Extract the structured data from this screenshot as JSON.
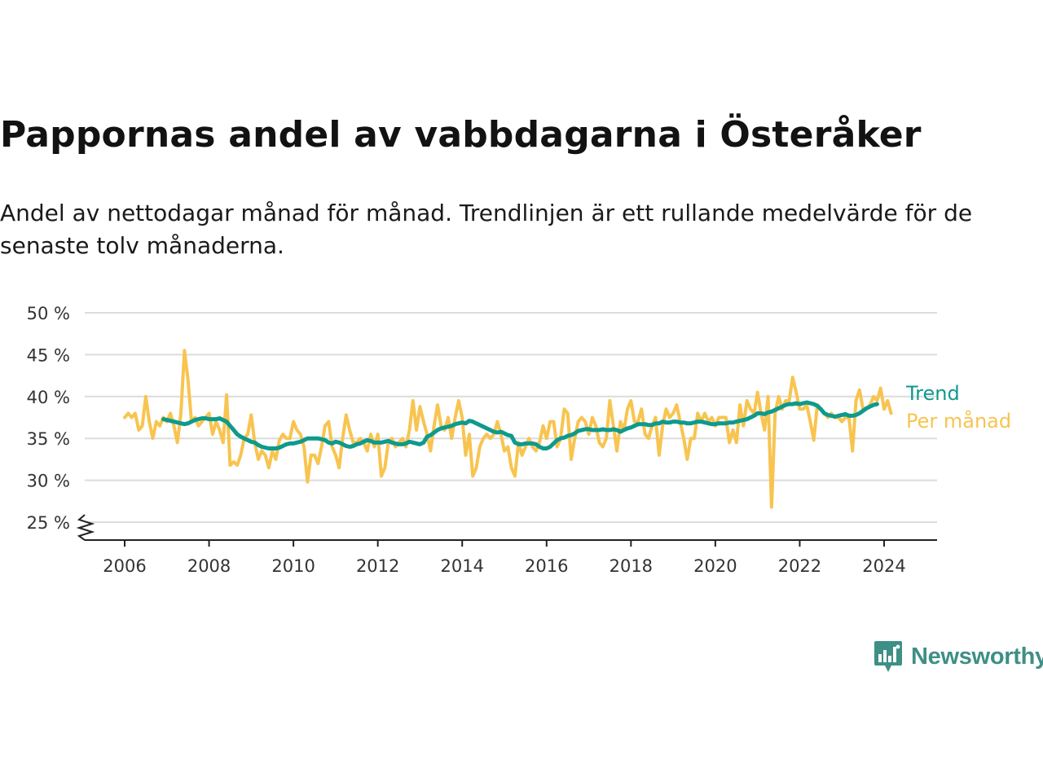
{
  "title": "Pappornas andel av vabbdagarna i Österåker",
  "subtitle": "Andel av nettodagar månad för månad. Trendlinjen är ett rullande medelvärde för de senaste tolv månaderna.",
  "brand": {
    "name": "Newsworthy",
    "color": "#3e8f86"
  },
  "colors": {
    "trend": "#0e9a8c",
    "monthly": "#f8c450",
    "grid": "#dcdcdc",
    "axis": "#222222"
  },
  "chart_data": {
    "type": "line",
    "title": "Pappornas andel av vabbdagarna i Österåker",
    "xlabel": "",
    "ylabel": "",
    "ylim": [
      25,
      50
    ],
    "y_axis_break": true,
    "y_ticks": [
      25,
      30,
      35,
      40,
      45,
      50
    ],
    "y_tick_labels": [
      "25 %",
      "30 %",
      "35 %",
      "40 %",
      "45 %",
      "50 %"
    ],
    "x_ticks": [
      "2006",
      "2008",
      "2010",
      "2012",
      "2014",
      "2016",
      "2018",
      "2020",
      "2022",
      "2024"
    ],
    "grid": true,
    "legend": "inline-right",
    "series": [
      {
        "name": "Per månad",
        "start": "2006-01",
        "frequency": "monthly",
        "values": [
          37.5,
          38.0,
          37.5,
          38.0,
          36.0,
          36.5,
          40.0,
          37.0,
          35.0,
          37.0,
          36.5,
          37.5,
          37.0,
          38.0,
          36.5,
          34.5,
          38.0,
          45.5,
          42.0,
          37.0,
          37.5,
          36.5,
          37.0,
          37.5,
          38.0,
          35.5,
          37.0,
          36.0,
          34.5,
          40.2,
          31.8,
          32.2,
          31.8,
          33.0,
          35.0,
          35.5,
          37.8,
          34.5,
          32.5,
          33.5,
          33.0,
          31.5,
          33.5,
          32.5,
          34.8,
          35.5,
          35.0,
          35.0,
          37.0,
          36.0,
          35.5,
          34.0,
          29.8,
          33.0,
          33.0,
          32.0,
          34.0,
          36.5,
          37.0,
          34.0,
          33.0,
          31.5,
          35.0,
          37.8,
          36.0,
          34.5,
          34.5,
          35.0,
          34.5,
          33.5,
          35.5,
          34.0,
          35.5,
          30.5,
          31.5,
          34.5,
          35.0,
          34.0,
          34.5,
          35.0,
          34.0,
          36.0,
          39.5,
          36.0,
          38.8,
          37.0,
          35.5,
          33.5,
          36.5,
          39.0,
          36.5,
          36.0,
          37.5,
          35.0,
          37.5,
          39.5,
          37.5,
          33.0,
          35.5,
          30.5,
          31.5,
          34.0,
          35.0,
          35.5,
          35.0,
          35.5,
          37.0,
          35.5,
          33.5,
          34.0,
          31.5,
          30.5,
          34.5,
          33.0,
          34.0,
          35.0,
          34.0,
          33.5,
          34.5,
          36.5,
          35.0,
          37.0,
          37.0,
          34.0,
          35.0,
          38.5,
          38.0,
          32.5,
          35.0,
          37.0,
          37.5,
          37.0,
          35.5,
          37.5,
          36.5,
          34.5,
          34.0,
          35.0,
          39.5,
          36.5,
          33.5,
          37.0,
          36.0,
          38.5,
          39.5,
          37.0,
          37.0,
          38.5,
          35.5,
          35.0,
          36.5,
          37.5,
          33.0,
          36.5,
          38.5,
          37.5,
          38.0,
          39.0,
          37.0,
          35.0,
          32.5,
          35.0,
          35.0,
          38.0,
          37.0,
          38.0,
          37.0,
          37.5,
          36.5,
          37.5,
          37.5,
          37.5,
          34.5,
          36.0,
          34.5,
          39.0,
          36.5,
          39.5,
          38.5,
          38.0,
          40.5,
          38.0,
          36.0,
          40.0,
          26.8,
          38.0,
          40.0,
          38.5,
          39.5,
          39.5,
          42.3,
          40.5,
          38.5,
          38.5,
          39.0,
          37.0,
          34.8,
          39.0,
          38.5,
          38.0,
          37.5,
          38.0,
          37.5,
          37.5,
          37.0,
          37.5,
          37.5,
          33.5,
          39.5,
          40.8,
          38.5,
          38.5,
          39.0,
          40.0,
          39.5,
          41.0,
          38.5,
          39.5,
          38.0
        ]
      },
      {
        "name": "Trend",
        "start": "2006-12",
        "frequency": "monthly",
        "values": [
          37.3,
          37.2,
          37.1,
          37.0,
          36.9,
          36.8,
          36.7,
          36.8,
          37.0,
          37.2,
          37.3,
          37.4,
          37.4,
          37.3,
          37.3,
          37.3,
          37.4,
          37.2,
          37.0,
          36.5,
          36.0,
          35.5,
          35.2,
          35.0,
          34.8,
          34.6,
          34.5,
          34.2,
          34.0,
          33.9,
          33.8,
          33.8,
          33.8,
          33.9,
          34.1,
          34.3,
          34.4,
          34.4,
          34.5,
          34.6,
          34.8,
          35.0,
          35.0,
          35.0,
          35.0,
          34.9,
          34.8,
          34.5,
          34.4,
          34.6,
          34.5,
          34.3,
          34.1,
          34.0,
          34.1,
          34.3,
          34.4,
          34.6,
          34.8,
          34.7,
          34.5,
          34.5,
          34.5,
          34.6,
          34.7,
          34.5,
          34.4,
          34.3,
          34.3,
          34.4,
          34.6,
          34.5,
          34.4,
          34.3,
          34.5,
          35.2,
          35.4,
          35.7,
          36.0,
          36.2,
          36.3,
          36.4,
          36.5,
          36.7,
          36.8,
          36.9,
          36.8,
          37.1,
          37.0,
          36.8,
          36.6,
          36.4,
          36.2,
          36.0,
          35.8,
          35.7,
          35.8,
          35.6,
          35.4,
          35.3,
          34.5,
          34.3,
          34.3,
          34.4,
          34.4,
          34.4,
          34.3,
          34.0,
          33.8,
          33.8,
          34.0,
          34.4,
          34.8,
          35.0,
          35.1,
          35.3,
          35.4,
          35.6,
          35.9,
          36.0,
          36.1,
          36.1,
          36.0,
          36.0,
          36.0,
          36.1,
          36.0,
          36.0,
          36.1,
          36.0,
          35.8,
          36.0,
          36.2,
          36.3,
          36.5,
          36.7,
          36.7,
          36.7,
          36.6,
          36.6,
          36.8,
          36.8,
          37.0,
          36.9,
          36.9,
          37.0,
          37.0,
          36.9,
          36.9,
          36.8,
          36.8,
          36.9,
          37.0,
          37.0,
          36.9,
          36.8,
          36.7,
          36.7,
          36.8,
          36.8,
          36.8,
          36.9,
          36.9,
          37.0,
          37.1,
          37.2,
          37.3,
          37.5,
          37.7,
          38.0,
          38.0,
          37.9,
          38.1,
          38.2,
          38.4,
          38.6,
          38.8,
          39.0,
          39.1,
          39.1,
          39.2,
          39.1,
          39.2,
          39.3,
          39.2,
          39.1,
          38.9,
          38.5,
          38.0,
          37.8,
          37.7,
          37.6,
          37.7,
          37.8,
          37.9,
          37.7,
          37.7,
          37.8,
          38.0,
          38.3,
          38.6,
          38.8,
          39.0,
          39.1
        ]
      }
    ]
  }
}
